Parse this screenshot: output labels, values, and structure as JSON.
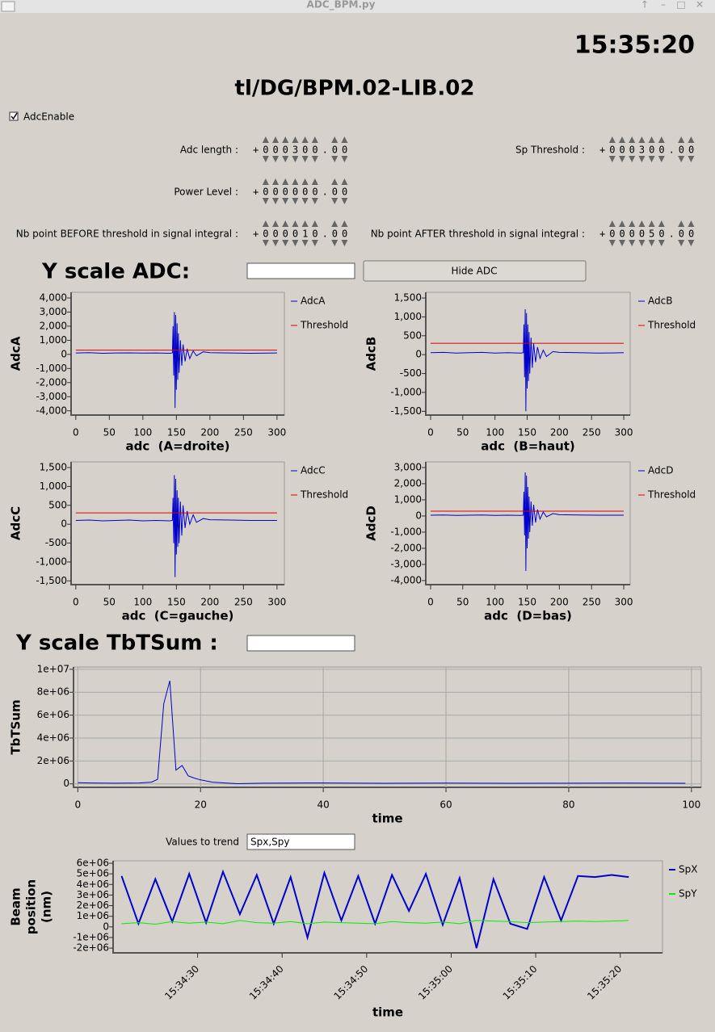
{
  "window": {
    "title": "ADC_BPM.py"
  },
  "clock": "15:35:20",
  "device": "tl/DG/BPM.02-LIB.02",
  "adc_enable": {
    "label": "AdcEnable",
    "checked": true
  },
  "fields": [
    {
      "label": "Adc length :",
      "value": "+000300.00"
    },
    {
      "label": "Sp Threshold :",
      "value": "+000300.00"
    },
    {
      "label": "Power Level :",
      "value": "+000000.00"
    },
    {
      "label": "Nb point BEFORE threshold in signal integral :",
      "value": "+000010.00"
    },
    {
      "label": "Nb point AFTER threshold in signal integral :",
      "value": "+000050.00"
    }
  ],
  "y_scale_adc": {
    "label": "Y scale ADC:"
  },
  "hide_adc_button": "Hide ADC",
  "y_scale_tbtsum": {
    "label": "Y scale TbTSum :"
  },
  "trend_input": {
    "label": "Values to trend",
    "value": "Spx,Spy"
  },
  "chart_data": [
    {
      "type": "line",
      "ylabel": "AdcA",
      "xlabel": "adc  (A=droite)",
      "legend": "right",
      "x": [
        0,
        20,
        40,
        60,
        80,
        100,
        120,
        140,
        144,
        145,
        146,
        147,
        148,
        149,
        150,
        151,
        152,
        153,
        154,
        156,
        158,
        160,
        163,
        166,
        170,
        175,
        180,
        190,
        200,
        230,
        260,
        300
      ],
      "series": [
        {
          "name": "AdcA",
          "color": "#0000cc",
          "values": [
            100,
            120,
            80,
            100,
            110,
            90,
            100,
            80,
            100,
            2000,
            -1500,
            3000,
            -3800,
            2800,
            -2500,
            2200,
            -1800,
            1500,
            -1300,
            1000,
            -800,
            700,
            -500,
            400,
            -300,
            250,
            -100,
            180,
            120,
            100,
            80,
            100
          ]
        },
        {
          "name": "Threshold",
          "color": "#dd0000",
          "x": [
            0,
            300
          ],
          "values": [
            300,
            300
          ]
        }
      ],
      "xlim": [
        -7,
        311
      ],
      "xticks": [
        0,
        50,
        100,
        150,
        200,
        250,
        300
      ],
      "ylim": [
        -4300,
        4400
      ],
      "yticks": [
        {
          "value": 4000,
          "label": "4,000"
        },
        {
          "value": 3000,
          "label": "3,000"
        },
        {
          "value": 2000,
          "label": "2,000"
        },
        {
          "value": 1000,
          "label": "1,000"
        },
        0,
        {
          "value": -1000,
          "label": "-1,000"
        },
        {
          "value": -2000,
          "label": "-2,000"
        },
        {
          "value": -3000,
          "label": "-3,000"
        },
        {
          "value": -4000,
          "label": "-4,000"
        }
      ]
    },
    {
      "type": "line",
      "ylabel": "AdcB",
      "xlabel": "adc  (B=haut)",
      "legend": "right",
      "x": [
        0,
        20,
        40,
        60,
        80,
        100,
        120,
        140,
        144,
        145,
        146,
        147,
        148,
        149,
        150,
        151,
        152,
        153,
        154,
        156,
        158,
        160,
        163,
        166,
        170,
        175,
        180,
        190,
        200,
        230,
        260,
        300
      ],
      "series": [
        {
          "name": "AdcB",
          "color": "#0000cc",
          "values": [
            50,
            60,
            40,
            50,
            60,
            40,
            50,
            40,
            50,
            800,
            -600,
            1200,
            -1500,
            1100,
            -900,
            800,
            -700,
            600,
            -500,
            450,
            -350,
            300,
            -200,
            200,
            -100,
            120,
            -50,
            80,
            60,
            50,
            40,
            50
          ]
        },
        {
          "name": "Threshold",
          "color": "#dd0000",
          "x": [
            0,
            300
          ],
          "values": [
            300,
            300
          ]
        }
      ],
      "xlim": [
        -7.5,
        310
      ],
      "xticks": [
        0,
        50,
        100,
        150,
        200,
        250,
        300
      ],
      "ylim": [
        -1600,
        1650
      ],
      "yticks": [
        {
          "value": 1500,
          "label": "1,500"
        },
        {
          "value": 1000,
          "label": "1,000"
        },
        500,
        0,
        -500,
        {
          "value": -1000,
          "label": "-1,000"
        },
        {
          "value": -1500,
          "label": "-1,500"
        }
      ]
    },
    {
      "type": "line",
      "ylabel": "AdcC",
      "xlabel": "adc  (C=gauche)",
      "legend": "right",
      "x": [
        0,
        20,
        40,
        60,
        80,
        100,
        120,
        140,
        144,
        145,
        146,
        147,
        148,
        149,
        150,
        151,
        152,
        153,
        154,
        156,
        158,
        160,
        163,
        166,
        170,
        175,
        180,
        190,
        200,
        230,
        260,
        300
      ],
      "series": [
        {
          "name": "AdcC",
          "color": "#0000cc",
          "values": [
            100,
            110,
            90,
            100,
            110,
            90,
            100,
            90,
            100,
            700,
            -500,
            1300,
            -1400,
            1200,
            -800,
            900,
            -600,
            700,
            -500,
            600,
            -300,
            500,
            -100,
            350,
            0,
            250,
            50,
            150,
            120,
            110,
            100,
            100
          ]
        },
        {
          "name": "Threshold",
          "color": "#dd0000",
          "x": [
            0,
            300
          ],
          "values": [
            300,
            300
          ]
        }
      ],
      "xlim": [
        -7,
        311
      ],
      "xticks": [
        0,
        50,
        100,
        150,
        200,
        250,
        300
      ],
      "ylim": [
        -1600,
        1650
      ],
      "yticks": [
        {
          "value": 1500,
          "label": "1,500"
        },
        {
          "value": 1000,
          "label": "1,000"
        },
        500,
        0,
        -500,
        {
          "value": -1000,
          "label": "-1,000"
        },
        {
          "value": -1500,
          "label": "-1,500"
        }
      ]
    },
    {
      "type": "line",
      "ylabel": "AdcD",
      "xlabel": "adc  (D=bas)",
      "legend": "right",
      "x": [
        0,
        20,
        40,
        60,
        80,
        100,
        120,
        140,
        144,
        145,
        146,
        147,
        148,
        149,
        150,
        151,
        152,
        153,
        154,
        156,
        158,
        160,
        163,
        166,
        170,
        175,
        180,
        190,
        200,
        230,
        260,
        300
      ],
      "series": [
        {
          "name": "AdcD",
          "color": "#0000cc",
          "values": [
            50,
            60,
            40,
            50,
            60,
            40,
            50,
            40,
            50,
            1500,
            -1200,
            2700,
            -3400,
            2500,
            -2000,
            1800,
            -1400,
            1200,
            -1000,
            900,
            -600,
            700,
            -400,
            400,
            -200,
            250,
            -50,
            150,
            80,
            60,
            50,
            50
          ]
        },
        {
          "name": "Threshold",
          "color": "#dd0000",
          "x": [
            0,
            300
          ],
          "values": [
            300,
            300
          ]
        }
      ],
      "xlim": [
        -7.5,
        310
      ],
      "xticks": [
        0,
        50,
        100,
        150,
        200,
        250,
        300
      ],
      "ylim": [
        -4250,
        3350
      ],
      "yticks": [
        {
          "value": 3000,
          "label": "3,000"
        },
        {
          "value": 2000,
          "label": "2,000"
        },
        {
          "value": 1000,
          "label": "1,000"
        },
        0,
        {
          "value": -1000,
          "label": "-1,000"
        },
        {
          "value": -2000,
          "label": "-2,000"
        },
        {
          "value": -3000,
          "label": "-3,000"
        },
        {
          "value": -4000,
          "label": "-4,000"
        }
      ]
    },
    {
      "type": "line",
      "ylabel": "TbTSum",
      "xlabel": "time",
      "grid": true,
      "x": [
        0,
        2,
        4,
        6,
        8,
        10,
        12,
        13,
        14,
        15,
        16,
        17,
        18,
        19,
        20,
        21,
        22,
        24,
        26,
        30,
        40,
        50,
        60,
        70,
        80,
        90,
        99
      ],
      "series": [
        {
          "color": "#0000cc",
          "values": [
            100000,
            80000,
            70000,
            60000,
            70000,
            80000,
            150000,
            400000,
            7000000,
            9000000,
            1200000,
            1600000,
            700000,
            500000,
            350000,
            250000,
            150000,
            80000,
            20000,
            60000,
            80000,
            50000,
            70000,
            50000,
            60000,
            70000,
            50000
          ]
        }
      ],
      "xlim": [
        -0.7,
        101.6
      ],
      "xticks": [
        0,
        20,
        40,
        60,
        80,
        100
      ],
      "ylim": [
        -300000,
        10200000
      ],
      "yticks": [
        {
          "value": 10000000,
          "label": "1e+07"
        },
        {
          "value": 8000000,
          "label": "8e+06"
        },
        {
          "value": 6000000,
          "label": "6e+06"
        },
        {
          "value": 4000000,
          "label": "4e+06"
        },
        {
          "value": 2000000,
          "label": "2e+06"
        },
        0
      ]
    },
    {
      "type": "line",
      "ylabel": [
        "Beam",
        "position",
        "(nm)"
      ],
      "xlabel": "time",
      "legend": "right",
      "x": [
        "15:34:21",
        "15:34:23",
        "15:34:25",
        "15:34:27",
        "15:34:29",
        "15:34:31",
        "15:34:33",
        "15:34:35",
        "15:34:37",
        "15:34:39",
        "15:34:41",
        "15:34:43",
        "15:34:45",
        "15:34:47",
        "15:34:49",
        "15:34:51",
        "15:34:53",
        "15:34:55",
        "15:34:57",
        "15:34:59",
        "15:35:01",
        "15:35:03",
        "15:35:05",
        "15:35:07",
        "15:35:09",
        "15:35:11",
        "15:35:13",
        "15:35:15",
        "15:35:17",
        "15:35:19",
        "15:35:21"
      ],
      "series": [
        {
          "name": "SpX",
          "color": "#0000cc",
          "values": [
            4800000,
            300000,
            4500000,
            500000,
            5000000,
            400000,
            5200000,
            1200000,
            4900000,
            300000,
            4700000,
            -1000000,
            5100000,
            600000,
            4800000,
            300000,
            4900000,
            1500000,
            5000000,
            200000,
            4600000,
            -2000000,
            4500000,
            300000,
            -200000,
            4700000,
            600000,
            4800000,
            4700000,
            4900000,
            4700000
          ]
        },
        {
          "name": "SpY",
          "color": "#00ee00",
          "values": [
            300000,
            400000,
            250000,
            500000,
            350000,
            450000,
            300000,
            600000,
            400000,
            350000,
            500000,
            300000,
            450000,
            400000,
            350000,
            300000,
            500000,
            400000,
            350000,
            450000,
            300000,
            600000,
            550000,
            500000,
            400000,
            450000,
            500000,
            550000,
            500000,
            550000,
            600000
          ]
        }
      ],
      "xlim": [
        "15:34:20",
        "15:35:25"
      ],
      "xticks": [
        "15:34:30",
        "15:34:40",
        "15:34:50",
        "15:35:00",
        "15:35:10",
        "15:35:20"
      ],
      "ylim": [
        -2450000,
        6230000
      ],
      "yticks": [
        {
          "value": 6000000,
          "label": "6e+06"
        },
        {
          "value": 5000000,
          "label": "5e+06"
        },
        {
          "value": 4000000,
          "label": "4e+06"
        },
        {
          "value": 3000000,
          "label": "3e+06"
        },
        {
          "value": 2000000,
          "label": "2e+06"
        },
        {
          "value": 1000000,
          "label": "1e+06"
        },
        0,
        {
          "value": -1000000,
          "label": "-1e+06"
        },
        {
          "value": -2000000,
          "label": "-2e+06"
        }
      ]
    }
  ]
}
